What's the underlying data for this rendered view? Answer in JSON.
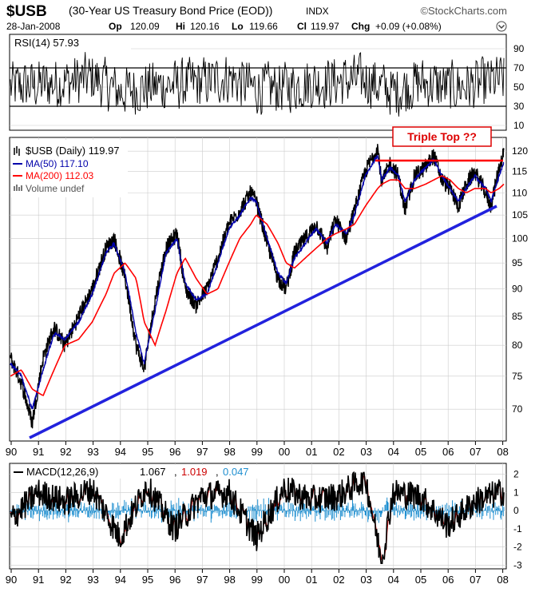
{
  "header": {
    "symbol": "$USB",
    "description": "(30-Year US Treasury Bond Price (EOD))",
    "exchange": "INDX",
    "watermark": "©StockCharts.com",
    "date": "28-Jan-2008",
    "open_label": "Op",
    "open_value": "120.09",
    "high_label": "Hi",
    "high_value": "120.16",
    "low_label": "Lo",
    "low_value": "119.66",
    "close_label": "Cl",
    "close_value": "119.97",
    "change_label": "Chg",
    "change_value": "+0.09 (+0.08%)"
  },
  "rsi_panel": {
    "legend": "RSI(14) 57.93",
    "y_ticks": [
      "90",
      "70",
      "50",
      "30",
      "10"
    ],
    "overbought": 70,
    "oversold": 30,
    "ylim": [
      0,
      100
    ]
  },
  "price_panel": {
    "legend_symbol": "$USB (Daily) 119.97",
    "legend_ma50": "MA(50) 117.10",
    "legend_ma200": "MA(200) 112.03",
    "legend_volume": "Volume undef",
    "annotation": "Triple Top ??",
    "y_ticks": [
      "120",
      "115",
      "110",
      "105",
      "100",
      "95",
      "90",
      "85",
      "80",
      "75",
      "70"
    ],
    "x_ticks": [
      "90",
      "91",
      "92",
      "93",
      "94",
      "95",
      "96",
      "97",
      "98",
      "99",
      "00",
      "01",
      "02",
      "03",
      "04",
      "05",
      "06",
      "07",
      "08"
    ]
  },
  "macd_panel": {
    "legend_prefix": "MACD(12,26,9)",
    "legend_macd": "1.067",
    "legend_signal": "1.019",
    "legend_hist": "0.047",
    "y_ticks": [
      "2",
      "1",
      "0",
      "-1",
      "-2",
      "-3"
    ],
    "x_ticks": [
      "90",
      "91",
      "92",
      "93",
      "94",
      "95",
      "96",
      "97",
      "98",
      "99",
      "00",
      "01",
      "02",
      "03",
      "04",
      "05",
      "06",
      "07",
      "08"
    ]
  },
  "colors": {
    "price": "#000000",
    "ma50": "#0000aa",
    "ma200": "#ff0000",
    "trendline": "#2222dd",
    "resistance": "#ff0000",
    "annotation": "#dd0000",
    "macd_signal": "#cc0000",
    "macd_hist": "#1f8fd0",
    "grid": "#cccccc"
  },
  "chart_data": [
    {
      "type": "line",
      "name": "RSI(14)",
      "x": [
        1990.0,
        1991.0,
        1992.0,
        1993.0,
        1994.0,
        1995.0,
        1996.0,
        1997.0,
        1998.0,
        1999.0,
        2000.0,
        2001.0,
        2002.0,
        2003.0,
        2004.0,
        2005.0,
        2006.0,
        2007.0,
        2008.07
      ],
      "y": [
        50,
        52,
        55,
        60,
        45,
        50,
        52,
        55,
        60,
        48,
        50,
        54,
        56,
        58,
        45,
        55,
        50,
        52,
        57.93
      ],
      "ylim": [
        0,
        100
      ]
    },
    {
      "type": "line",
      "title": "$USB (Daily)",
      "x": [
        1990.0,
        1990.4,
        1990.8,
        1991.2,
        1991.6,
        1992.0,
        1992.5,
        1993.0,
        1993.5,
        1993.8,
        1994.2,
        1994.6,
        1994.9,
        1995.3,
        1995.7,
        1996.1,
        1996.4,
        1996.8,
        1997.2,
        1997.6,
        1998.0,
        1998.4,
        1998.8,
        1999.0,
        1999.4,
        1999.8,
        2000.1,
        2000.4,
        2000.8,
        2001.2,
        2001.6,
        2001.9,
        2002.3,
        2002.6,
        2003.0,
        2003.45,
        2003.6,
        2003.9,
        2004.2,
        2004.45,
        2004.8,
        2005.2,
        2005.5,
        2005.8,
        2006.1,
        2006.4,
        2006.7,
        2007.0,
        2007.4,
        2007.6,
        2007.9,
        2008.07
      ],
      "series": [
        {
          "name": "$USB",
          "values": [
            78,
            74,
            68,
            78,
            83,
            80,
            85,
            90,
            98,
            100,
            92,
            80,
            76,
            88,
            98,
            101,
            90,
            87,
            90,
            96,
            103,
            106,
            110,
            108,
            99,
            92,
            90,
            97,
            100,
            103,
            98,
            104,
            100,
            106,
            115,
            121,
            112,
            117,
            114,
            106,
            114,
            116,
            119,
            113,
            111,
            107,
            112,
            115,
            110,
            107,
            116,
            119.97
          ]
        },
        {
          "name": "MA(50)",
          "values": [
            77,
            75,
            70,
            76,
            82,
            81,
            84,
            89,
            97,
            99,
            93,
            82,
            77,
            86,
            97,
            100,
            91,
            88,
            89,
            95,
            102,
            105,
            109,
            108,
            100,
            93,
            91,
            96,
            99,
            102,
            99,
            103,
            101,
            105,
            114,
            119,
            113,
            116,
            114,
            108,
            113,
            116,
            118,
            114,
            111,
            108,
            111,
            114,
            111,
            108,
            114,
            117.1
          ]
        },
        {
          "name": "MA(200)",
          "values": [
            75,
            76,
            73,
            72,
            76,
            80,
            81,
            84,
            89,
            93,
            95,
            92,
            84,
            80,
            86,
            93,
            96,
            92,
            89,
            90,
            95,
            100,
            103,
            105,
            103,
            99,
            95,
            94,
            96,
            98,
            100,
            101,
            102,
            103,
            107,
            111,
            112,
            113,
            113,
            111,
            111,
            112,
            113,
            114,
            113,
            111,
            110,
            111,
            111,
            110,
            111,
            112.03
          ]
        }
      ]
    },
    {
      "type": "line",
      "title": "MACD(12,26,9)",
      "x": [
        1990.0,
        1991.0,
        1992.0,
        1993.0,
        1994.0,
        1995.0,
        1996.0,
        1997.0,
        1998.0,
        1999.0,
        2000.0,
        2001.0,
        2002.0,
        2003.0,
        2003.6,
        2004.0,
        2005.0,
        2006.0,
        2007.0,
        2008.07
      ],
      "series": [
        {
          "name": "MACD",
          "values": [
            -0.5,
            1.0,
            0.5,
            1.2,
            -1.5,
            1.4,
            -1.0,
            0.8,
            1.0,
            -1.5,
            1.2,
            0.6,
            0.8,
            1.8,
            -2.8,
            1.0,
            0.8,
            -0.8,
            0.5,
            1.067
          ]
        },
        {
          "name": "Signal",
          "values": [
            -0.4,
            0.8,
            0.5,
            1.0,
            -1.2,
            1.1,
            -0.8,
            0.7,
            0.9,
            -1.2,
            1.0,
            0.5,
            0.7,
            1.5,
            -2.0,
            0.8,
            0.7,
            -0.6,
            0.4,
            1.019
          ]
        },
        {
          "name": "Histogram",
          "values": [
            -0.1,
            0.2,
            0.0,
            0.2,
            -0.3,
            0.3,
            -0.2,
            0.1,
            0.1,
            -0.3,
            0.2,
            0.1,
            0.1,
            0.3,
            -0.8,
            0.2,
            0.1,
            -0.2,
            0.1,
            0.047
          ]
        }
      ],
      "ylim": [
        -3.2,
        2.6
      ]
    }
  ]
}
